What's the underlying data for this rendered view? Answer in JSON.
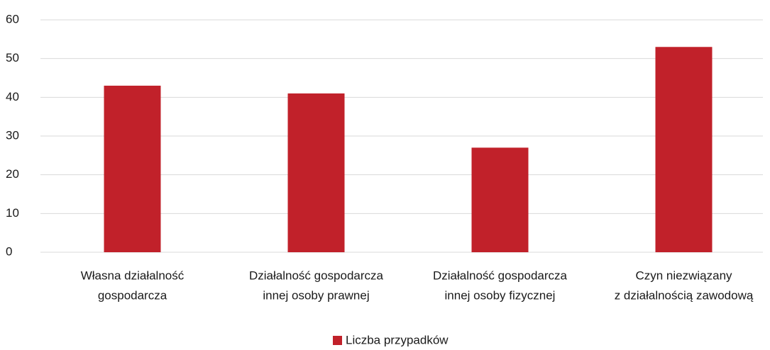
{
  "chart_data": {
    "type": "bar",
    "categories": [
      [
        "Własna działalność",
        "gospodarcza"
      ],
      [
        "Działalność gospodarcza",
        "innej osoby prawnej"
      ],
      [
        "Działalność gospodarcza",
        "innej osoby fizycznej"
      ],
      [
        "Czyn niezwiązany",
        "z działalnością zawodową"
      ]
    ],
    "series": [
      {
        "name": "Liczba przypadków",
        "color": "#c1212a",
        "values": [
          43,
          41,
          27,
          53
        ]
      }
    ],
    "ylim": [
      0,
      60
    ],
    "yticks": [
      0,
      10,
      20,
      30,
      40,
      50,
      60
    ],
    "grid": true,
    "legend": "bottom"
  }
}
